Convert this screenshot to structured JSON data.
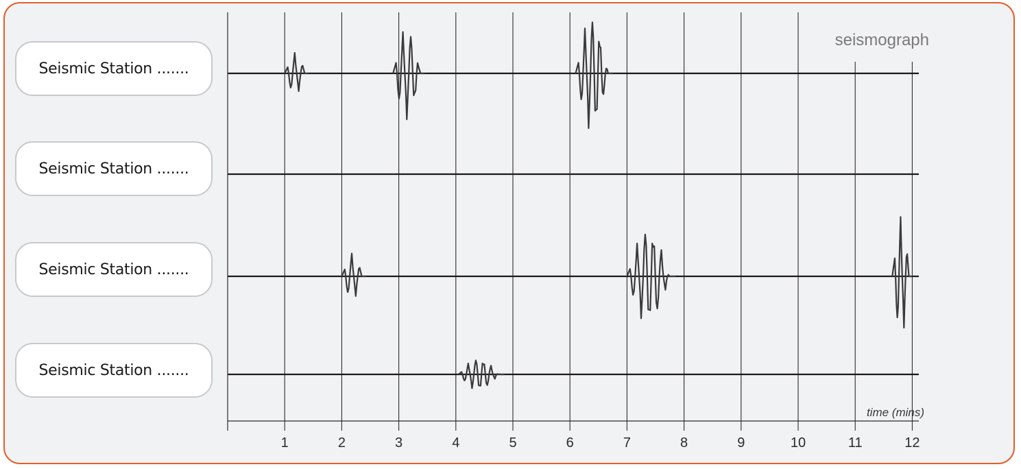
{
  "diagram": {
    "title": "seismograph",
    "axis_label": "time (mins)",
    "accent_color": "#e0602b",
    "trace_color": "#3a3a3a"
  },
  "stations": [
    {
      "label": "Seismic Station  ......."
    },
    {
      "label": "Seismic Station  ......."
    },
    {
      "label": "Seismic Station  ......."
    },
    {
      "label": "Seismic Station  ......."
    }
  ],
  "chart_data": {
    "type": "line",
    "xlabel": "time (mins)",
    "title": "seismograph",
    "x_ticks": [
      "1",
      "2",
      "3",
      "4",
      "5",
      "6",
      "7",
      "8",
      "9",
      "10",
      "11",
      "12"
    ],
    "xlim": [
      0,
      12
    ],
    "grid": true,
    "series": [
      {
        "bursts": [
          {
            "start": 1.0,
            "end": 1.42,
            "amplitude": 0.45
          },
          {
            "start": 2.9,
            "end": 3.45,
            "amplitude": 1.0
          },
          {
            "start": 6.1,
            "end": 6.75,
            "amplitude": 1.25
          }
        ]
      },
      {
        "bursts": []
      },
      {
        "bursts": [
          {
            "start": 2.0,
            "end": 2.42,
            "amplitude": 0.5
          },
          {
            "start": 7.0,
            "end": 7.85,
            "amplitude": 1.05
          },
          {
            "start": 11.65,
            "end": 12.0,
            "amplitude": 1.3
          }
        ]
      },
      {
        "bursts": [
          {
            "start": 4.05,
            "end": 4.85,
            "amplitude": 0.35
          }
        ]
      }
    ]
  }
}
